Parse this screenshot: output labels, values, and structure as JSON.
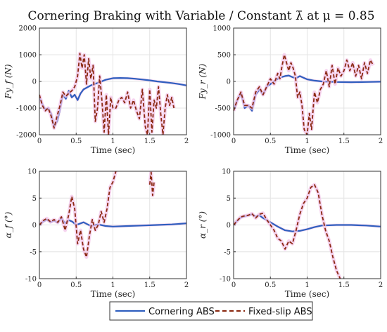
{
  "figure": {
    "title": "Cornering Braking with Variable / Constant λ̄ at μ = 0.85",
    "legend": [
      {
        "name": "Cornering ABS",
        "color": "#2f5fbf",
        "dash": "solid"
      },
      {
        "name": "Fixed-slip ABS",
        "color": "#8b2a12",
        "dash": "dashed"
      }
    ],
    "legend_position": "bottom-center",
    "highlight_color": "#f3c6ea"
  },
  "chart_data": [
    {
      "type": "line",
      "ylabel": "Fy_f (N)",
      "xlabel": "Time (sec)",
      "xlim": [
        0,
        2
      ],
      "ylim": [
        -2000,
        2000
      ],
      "xticks": [
        0,
        0.5,
        1,
        1.5,
        2
      ],
      "yticks": [
        -2000,
        -1000,
        0,
        1000,
        2000
      ],
      "xtick_labels": [
        "0",
        "0.5",
        "1",
        "1.5",
        "2"
      ],
      "ytick_labels": [
        "-2000",
        "-1000",
        "0",
        "1000",
        "2000"
      ],
      "grid": true,
      "series": [
        {
          "name": "Cornering ABS",
          "x": [
            0,
            0.04,
            0.08,
            0.12,
            0.16,
            0.2,
            0.24,
            0.28,
            0.32,
            0.36,
            0.4,
            0.44,
            0.48,
            0.52,
            0.56,
            0.6,
            0.7,
            0.8,
            0.9,
            1.0,
            1.1,
            1.2,
            1.3,
            1.4,
            1.5,
            1.6,
            1.7,
            1.8,
            1.9,
            2.0
          ],
          "y": [
            -600,
            -850,
            -1050,
            -1000,
            -1200,
            -1700,
            -1500,
            -1050,
            -500,
            -650,
            -350,
            -600,
            -500,
            -700,
            -450,
            -300,
            -150,
            -50,
            60,
            120,
            130,
            120,
            100,
            70,
            40,
            0,
            -30,
            -60,
            -100,
            -150
          ]
        },
        {
          "name": "Fixed-slip ABS",
          "x": [
            0,
            0.04,
            0.08,
            0.12,
            0.16,
            0.2,
            0.24,
            0.28,
            0.32,
            0.36,
            0.4,
            0.44,
            0.48,
            0.52,
            0.55,
            0.58,
            0.61,
            0.64,
            0.67,
            0.7,
            0.73,
            0.76,
            0.79,
            0.82,
            0.85,
            0.88,
            0.91,
            0.94,
            0.97,
            1.0,
            1.04,
            1.08,
            1.12,
            1.16,
            1.2,
            1.24,
            1.28,
            1.32,
            1.36,
            1.4,
            1.44,
            1.47,
            1.5,
            1.53,
            1.56,
            1.59,
            1.62,
            1.65,
            1.68,
            1.71,
            1.74,
            1.77,
            1.8,
            1.83
          ],
          "y": [
            -500,
            -900,
            -1100,
            -1000,
            -1300,
            -1750,
            -1300,
            -900,
            -400,
            -550,
            -450,
            -350,
            -200,
            200,
            1050,
            500,
            1000,
            -100,
            850,
            100,
            600,
            -1500,
            -1000,
            200,
            -700,
            -1900,
            -500,
            -2000,
            -600,
            -1000,
            -1000,
            -700,
            -600,
            -800,
            -400,
            -1000,
            -700,
            -1100,
            -1400,
            -300,
            -1700,
            -2000,
            -300,
            -1900,
            -700,
            -1000,
            -200,
            -1200,
            -2000,
            -1000,
            -500,
            -900,
            -600,
            -1000
          ]
        }
      ]
    },
    {
      "type": "line",
      "ylabel": "Fy_r (N)",
      "xlabel": "Time (sec)",
      "xlim": [
        0,
        2
      ],
      "ylim": [
        -1000,
        1000
      ],
      "xticks": [
        0,
        0.5,
        1,
        1.5,
        2
      ],
      "yticks": [
        -1000,
        -500,
        0,
        500,
        1000
      ],
      "xtick_labels": [
        "0",
        "0.5",
        "1",
        "1.5",
        "2"
      ],
      "ytick_labels": [
        "-1000",
        "-500",
        "0",
        "500",
        "1000"
      ],
      "grid": true,
      "series": [
        {
          "name": "Cornering ABS",
          "x": [
            0,
            0.05,
            0.1,
            0.15,
            0.2,
            0.25,
            0.3,
            0.35,
            0.4,
            0.45,
            0.5,
            0.55,
            0.6,
            0.65,
            0.7,
            0.75,
            0.8,
            0.85,
            0.9,
            0.95,
            1.0,
            1.1,
            1.2,
            1.4,
            1.6,
            1.8,
            2.0
          ],
          "y": [
            -550,
            -350,
            -220,
            -500,
            -450,
            -550,
            -250,
            -150,
            -250,
            -100,
            -50,
            0,
            50,
            80,
            100,
            110,
            80,
            60,
            100,
            70,
            40,
            15,
            0,
            -10,
            -15,
            -10,
            -5
          ]
        },
        {
          "name": "Fixed-slip ABS",
          "x": [
            0,
            0.05,
            0.1,
            0.15,
            0.2,
            0.25,
            0.3,
            0.35,
            0.4,
            0.45,
            0.5,
            0.55,
            0.6,
            0.63,
            0.66,
            0.69,
            0.72,
            0.75,
            0.78,
            0.81,
            0.84,
            0.87,
            0.9,
            0.93,
            0.96,
            1.0,
            1.03,
            1.06,
            1.1,
            1.14,
            1.18,
            1.22,
            1.26,
            1.3,
            1.34,
            1.38,
            1.42,
            1.46,
            1.5,
            1.54,
            1.58,
            1.62,
            1.66,
            1.7,
            1.74,
            1.78,
            1.82,
            1.86,
            1.9
          ],
          "y": [
            -550,
            -350,
            -200,
            -450,
            -450,
            -500,
            -200,
            -100,
            -250,
            -100,
            50,
            -50,
            150,
            50,
            300,
            500,
            350,
            200,
            350,
            250,
            100,
            -300,
            -200,
            -450,
            -900,
            -1000,
            -600,
            -900,
            -200,
            -400,
            -150,
            -50,
            200,
            -100,
            300,
            -50,
            250,
            100,
            200,
            400,
            200,
            350,
            100,
            300,
            50,
            350,
            150,
            400,
            300
          ]
        }
      ]
    },
    {
      "type": "line",
      "ylabel": "α_f (°)",
      "xlabel": "Time (sec)",
      "xlim": [
        0,
        2
      ],
      "ylim": [
        -10,
        10
      ],
      "xticks": [
        0,
        0.5,
        1,
        1.5,
        2
      ],
      "yticks": [
        -10,
        -5,
        0,
        5,
        10
      ],
      "xtick_labels": [
        "0",
        "0.5",
        "1",
        "1.5",
        "2"
      ],
      "ytick_labels": [
        "-10",
        "-5",
        "0",
        "5",
        "10"
      ],
      "grid": true,
      "series": [
        {
          "name": "Cornering ABS",
          "x": [
            0,
            0.05,
            0.1,
            0.15,
            0.2,
            0.25,
            0.3,
            0.35,
            0.4,
            0.45,
            0.5,
            0.6,
            0.7,
            0.8,
            0.9,
            1.0,
            1.2,
            1.4,
            1.6,
            1.8,
            2.0
          ],
          "y": [
            0,
            0.6,
            1.0,
            0.5,
            0.8,
            0.4,
            1.3,
            0.3,
            0.9,
            0.6,
            0.0,
            0.5,
            -0.2,
            0.1,
            -0.2,
            -0.3,
            -0.2,
            -0.1,
            0.0,
            0.1,
            0.3
          ]
        },
        {
          "name": "Fixed-slip ABS",
          "x": [
            0,
            0.05,
            0.1,
            0.15,
            0.2,
            0.25,
            0.3,
            0.35,
            0.4,
            0.44,
            0.48,
            0.52,
            0.56,
            0.6,
            0.64,
            0.68,
            0.72,
            0.76,
            0.8,
            0.84,
            0.88,
            0.92,
            0.96,
            1.0,
            1.04
          ],
          "y": [
            0,
            0.8,
            1.2,
            0.6,
            1.0,
            0.5,
            1.5,
            -1.0,
            2.0,
            5.3,
            3.0,
            -3.5,
            -1.0,
            -4.5,
            -6.0,
            -2.0,
            1.0,
            -1.0,
            0.0,
            2.5,
            0.5,
            3.0,
            7.0,
            8.0,
            10.0
          ]
        },
        {
          "name": "Fixed-slip ABS",
          "x": [
            1.5,
            1.52,
            1.54,
            1.56
          ],
          "y": [
            7.5,
            9.8,
            5.5,
            8.0
          ]
        }
      ]
    },
    {
      "type": "line",
      "ylabel": "α_r (°)",
      "xlabel": "Time (sec)",
      "xlim": [
        0,
        2
      ],
      "ylim": [
        -10,
        10
      ],
      "xticks": [
        0,
        0.5,
        1,
        1.5,
        2
      ],
      "yticks": [
        -10,
        -5,
        0,
        5,
        10
      ],
      "xtick_labels": [
        "0",
        "0.5",
        "1",
        "1.5",
        "2"
      ],
      "ytick_labels": [
        "-10",
        "-5",
        "0",
        "5",
        "10"
      ],
      "grid": true,
      "series": [
        {
          "name": "Cornering ABS",
          "x": [
            0,
            0.05,
            0.1,
            0.15,
            0.2,
            0.25,
            0.3,
            0.35,
            0.4,
            0.5,
            0.6,
            0.7,
            0.8,
            0.9,
            1.0,
            1.1,
            1.2,
            1.4,
            1.6,
            1.8,
            2.0
          ],
          "y": [
            0,
            0.8,
            1.4,
            1.6,
            1.8,
            2.0,
            1.6,
            1.8,
            1.3,
            0.5,
            -0.3,
            -1.0,
            -1.2,
            -1.1,
            -0.8,
            -0.4,
            -0.1,
            0.0,
            0.0,
            -0.1,
            -0.3
          ]
        },
        {
          "name": "Fixed-slip ABS",
          "x": [
            0,
            0.05,
            0.1,
            0.15,
            0.2,
            0.25,
            0.3,
            0.35,
            0.4,
            0.45,
            0.5,
            0.55,
            0.6,
            0.65,
            0.7,
            0.75,
            0.8,
            0.85,
            0.9,
            0.95,
            1.0,
            1.05,
            1.1,
            1.15,
            1.2,
            1.25,
            1.3,
            1.35,
            1.4,
            1.45
          ],
          "y": [
            0,
            0.8,
            1.5,
            1.7,
            1.8,
            2.1,
            1.3,
            2.0,
            2.2,
            1.0,
            0.0,
            -1.0,
            -2.5,
            -3.0,
            -4.5,
            -3.0,
            -3.5,
            -1.0,
            2.0,
            4.0,
            5.0,
            7.0,
            7.5,
            6.0,
            2.0,
            -1.0,
            -3.0,
            -6.0,
            -8.5,
            -10.0
          ]
        }
      ]
    }
  ]
}
